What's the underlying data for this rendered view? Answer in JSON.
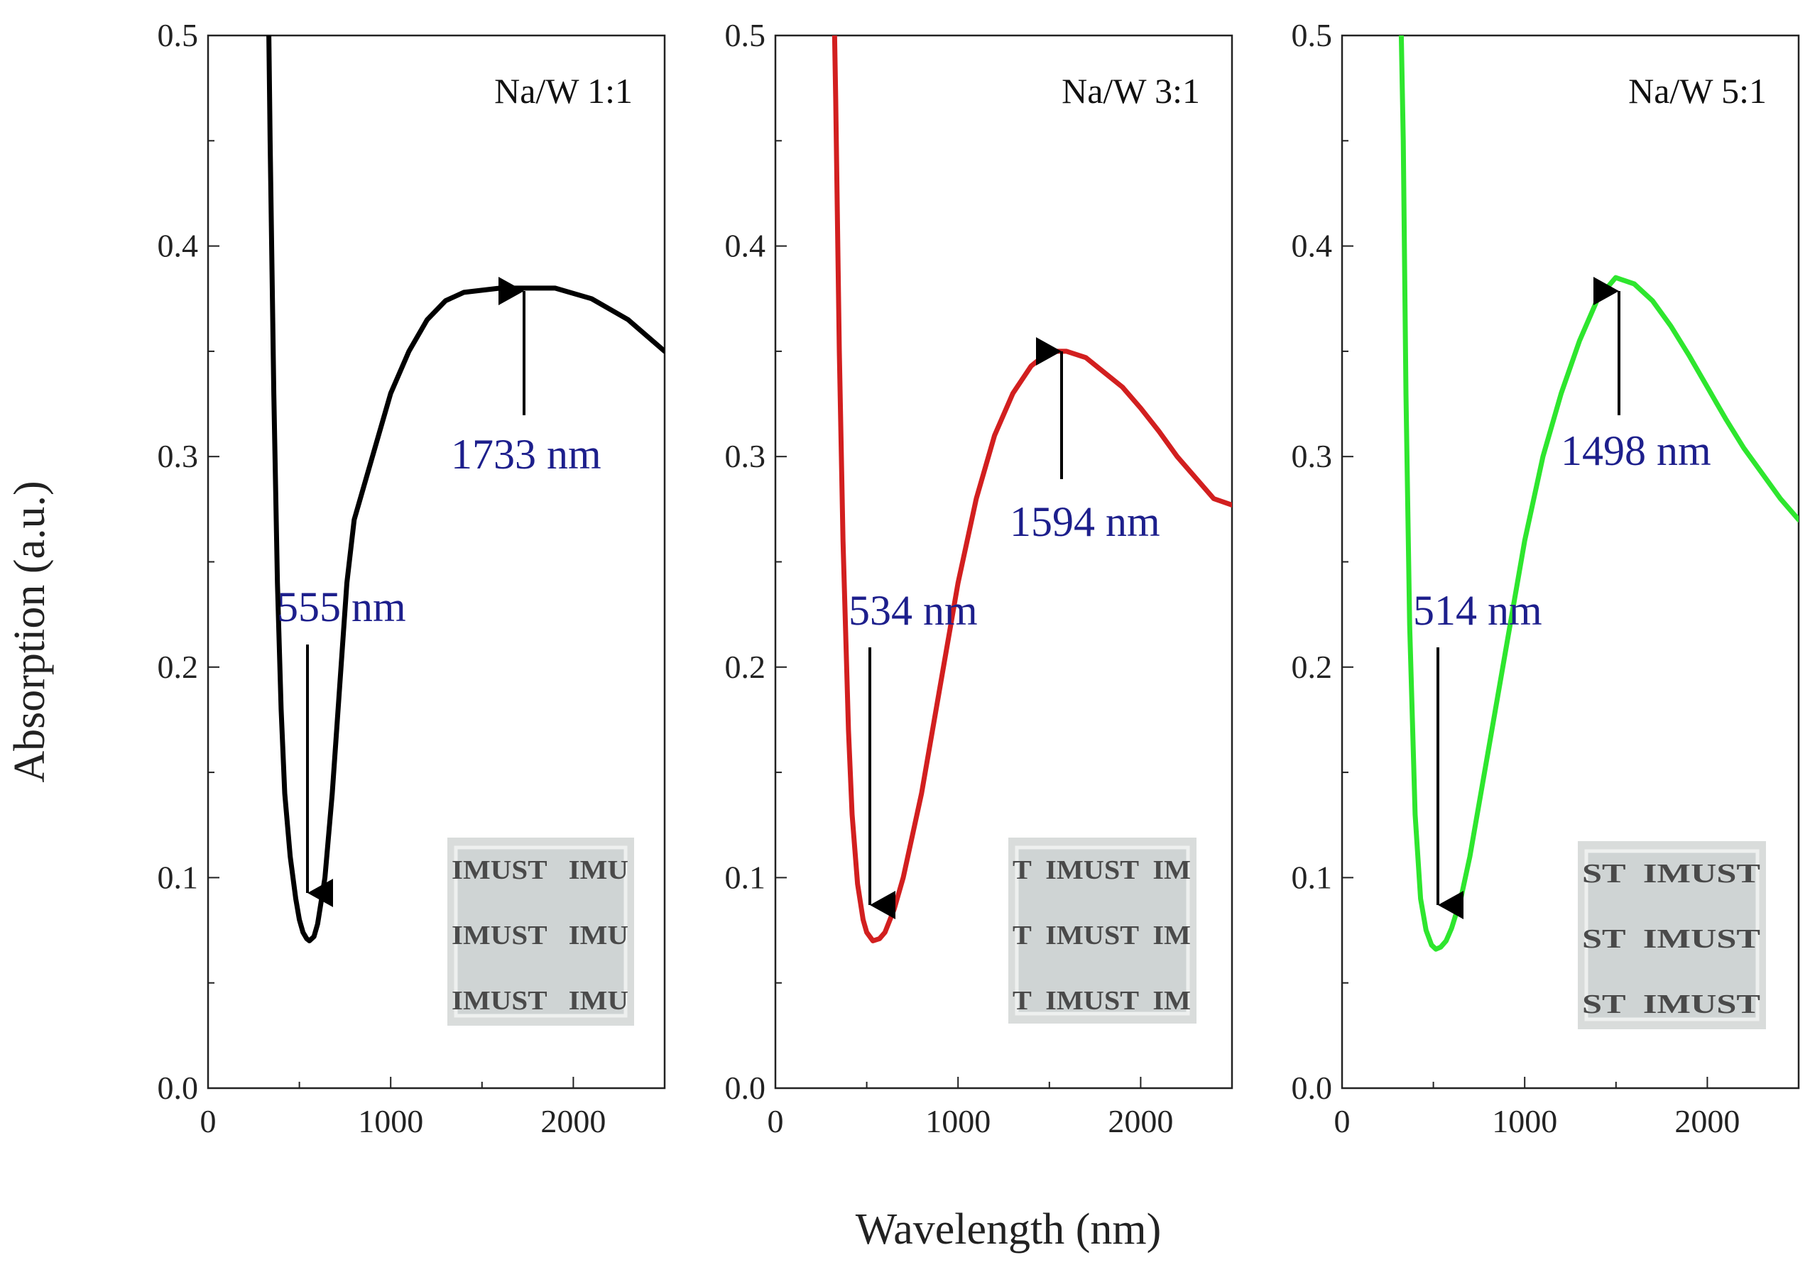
{
  "chart_data": [
    {
      "type": "line",
      "title": "Na/W 1:1",
      "color": "#000000",
      "xlabel": "Wavelength (nm)",
      "ylabel": "Absorption (a.u.)",
      "xlim": [
        0,
        2500
      ],
      "ylim": [
        0.0,
        0.5
      ],
      "xticks": [
        "0",
        "1000",
        "2000"
      ],
      "yticks": [
        "0.0",
        "0.1",
        "0.2",
        "0.3",
        "0.4",
        "0.5"
      ],
      "x": [
        330,
        340,
        360,
        380,
        400,
        420,
        450,
        480,
        500,
        520,
        540,
        555,
        580,
        600,
        640,
        680,
        720,
        760,
        800,
        900,
        1000,
        1100,
        1200,
        1300,
        1400,
        1500,
        1600,
        1733,
        1900,
        2100,
        2300,
        2500
      ],
      "y": [
        0.52,
        0.45,
        0.33,
        0.24,
        0.18,
        0.14,
        0.11,
        0.09,
        0.08,
        0.074,
        0.071,
        0.07,
        0.072,
        0.078,
        0.1,
        0.14,
        0.19,
        0.24,
        0.27,
        0.3,
        0.33,
        0.35,
        0.365,
        0.374,
        0.378,
        0.379,
        0.38,
        0.38,
        0.38,
        0.375,
        0.365,
        0.35
      ],
      "annotations": [
        {
          "text": "555 nm",
          "x": 555,
          "y": 0.07
        },
        {
          "text": "1733 nm",
          "x": 1733,
          "y": 0.38
        }
      ],
      "inset": {
        "rows": [
          "IMUST   IMU",
          "IMUST   IMU",
          "IMUST   IMU"
        ]
      }
    },
    {
      "type": "line",
      "title": "Na/W 3:1",
      "color": "#d21f1f",
      "xlabel": "Wavelength (nm)",
      "ylabel": "Absorption (a.u.)",
      "xlim": [
        0,
        2500
      ],
      "ylim": [
        0.0,
        0.5
      ],
      "xticks": [
        "0",
        "1000",
        "2000"
      ],
      "yticks": [
        "0.0",
        "0.1",
        "0.2",
        "0.3",
        "0.4",
        "0.5"
      ],
      "x": [
        320,
        330,
        350,
        370,
        400,
        420,
        450,
        480,
        500,
        534,
        570,
        600,
        650,
        700,
        750,
        800,
        900,
        1000,
        1100,
        1200,
        1300,
        1400,
        1500,
        1594,
        1700,
        1800,
        1900,
        2000,
        2100,
        2200,
        2300,
        2400,
        2500
      ],
      "y": [
        0.52,
        0.47,
        0.35,
        0.26,
        0.17,
        0.13,
        0.097,
        0.08,
        0.074,
        0.07,
        0.071,
        0.074,
        0.085,
        0.1,
        0.12,
        0.14,
        0.19,
        0.24,
        0.28,
        0.31,
        0.33,
        0.343,
        0.35,
        0.35,
        0.347,
        0.34,
        0.333,
        0.323,
        0.312,
        0.3,
        0.29,
        0.28,
        0.277
      ],
      "annotations": [
        {
          "text": "534 nm",
          "x": 534,
          "y": 0.07
        },
        {
          "text": "1594 nm",
          "x": 1594,
          "y": 0.35
        }
      ],
      "inset": {
        "rows": [
          "T  IMUST  IM",
          "T  IMUST  IM",
          "T  IMUST  IM"
        ]
      }
    },
    {
      "type": "line",
      "title": "Na/W 5:1",
      "color": "#2ee62e",
      "xlabel": "Wavelength (nm)",
      "ylabel": "Absorption (a.u.)",
      "xlim": [
        0,
        2500
      ],
      "ylim": [
        0.0,
        0.5
      ],
      "xticks": [
        "0",
        "1000",
        "2000"
      ],
      "yticks": [
        "0.0",
        "0.1",
        "0.2",
        "0.3",
        "0.4",
        "0.5"
      ],
      "x": [
        320,
        335,
        350,
        370,
        400,
        430,
        460,
        490,
        514,
        540,
        570,
        600,
        650,
        700,
        800,
        900,
        1000,
        1100,
        1200,
        1300,
        1400,
        1498,
        1600,
        1700,
        1800,
        1900,
        2000,
        2100,
        2200,
        2300,
        2400,
        2500
      ],
      "y": [
        0.52,
        0.45,
        0.33,
        0.22,
        0.13,
        0.09,
        0.075,
        0.068,
        0.066,
        0.067,
        0.07,
        0.076,
        0.09,
        0.11,
        0.16,
        0.21,
        0.26,
        0.3,
        0.33,
        0.355,
        0.375,
        0.385,
        0.382,
        0.374,
        0.362,
        0.348,
        0.333,
        0.318,
        0.304,
        0.292,
        0.28,
        0.27
      ],
      "annotations": [
        {
          "text": "514 nm",
          "x": 514,
          "y": 0.066
        },
        {
          "text": "1498 nm",
          "x": 1498,
          "y": 0.385
        }
      ],
      "inset": {
        "rows": [
          "ST  IMUST",
          "ST  IMUST",
          "ST  IMUST"
        ]
      }
    }
  ],
  "shared": {
    "xlabel": "Wavelength (nm)",
    "ylabel": "Absorption (a.u.)"
  }
}
